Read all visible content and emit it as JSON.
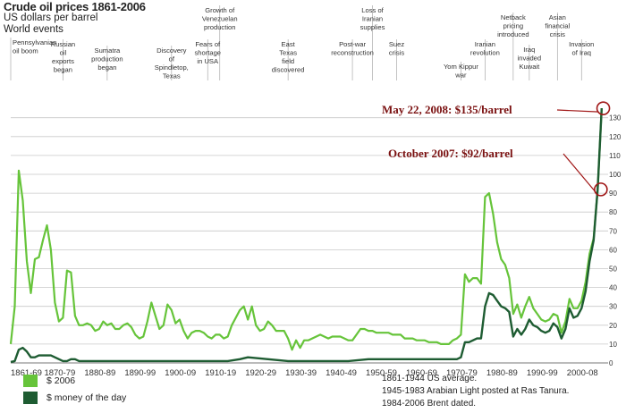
{
  "header": {
    "title": "Crude oil prices 1861-2006",
    "subtitle": "US dollars per barrel",
    "events_heading": "World events"
  },
  "legend": {
    "items": [
      {
        "label": "$ 2006",
        "color": "#66c43a"
      },
      {
        "label": "$ money of the day",
        "color": "#1e5c32"
      }
    ]
  },
  "notes": [
    "1861-1944 US average.",
    "1945-1983 Arabian Light posted at Ras Tanura.",
    "1984-2006 Brent dated."
  ],
  "annotations": [
    {
      "label": "May 22, 2008: $135/barrel",
      "year": 2008.4,
      "value": 135
    },
    {
      "label": "October 2007: $92/barrel",
      "year": 2007.8,
      "value": 92
    }
  ],
  "events": [
    {
      "label": "Pennsylvanian oil boom",
      "year": 1861
    },
    {
      "label": "Russian oil exports began",
      "year": 1874
    },
    {
      "label": "Sumatra production began",
      "year": 1885
    },
    {
      "label": "Discovery of Spindletop, Texas",
      "year": 1901
    },
    {
      "label": "Fears of shortage in USA",
      "year": 1910
    },
    {
      "label": "Growth of Venezuelan production",
      "year": 1913
    },
    {
      "label": "East Texas field discovered",
      "year": 1930
    },
    {
      "label": "Post-war reconstruction",
      "year": 1946
    },
    {
      "label": "Loss of Iranian supplies",
      "year": 1951
    },
    {
      "label": "Suez crisis",
      "year": 1957
    },
    {
      "label": "Yom Kippur war",
      "year": 1973
    },
    {
      "label": "Iranian revolution",
      "year": 1979
    },
    {
      "label": "Netback pricing introduced",
      "year": 1986
    },
    {
      "label": "Iraq invaded Kuwait",
      "year": 1990
    },
    {
      "label": "Asian financial crisis",
      "year": 1997
    },
    {
      "label": "Invasion of Iraq",
      "year": 2003
    }
  ],
  "chart_data": {
    "type": "line",
    "title": "Crude oil prices 1861-2006",
    "ylabel": "US dollars per barrel",
    "xlim": [
      1861,
      2008.5
    ],
    "ylim": [
      0,
      135
    ],
    "yticks": [
      0,
      10,
      20,
      30,
      40,
      50,
      60,
      70,
      80,
      90,
      100,
      110,
      120,
      130
    ],
    "y_axis_position": "right",
    "grid": "horizontal",
    "legend_position": "bottom-left",
    "categories": [
      "1861-69",
      "1870-79",
      "1880-89",
      "1890-99",
      "1900-09",
      "1910-19",
      "1920-29",
      "1930-39",
      "1940-49",
      "1950-59",
      "1960-69",
      "1970-79",
      "1980-89",
      "1990-99",
      "2000-08"
    ],
    "series": [
      {
        "name": "$ 2006",
        "color": "#66c43a",
        "x": [
          1861,
          1862,
          1863,
          1864,
          1865,
          1866,
          1867,
          1868,
          1869,
          1870,
          1871,
          1872,
          1873,
          1874,
          1875,
          1876,
          1877,
          1878,
          1879,
          1880,
          1881,
          1882,
          1883,
          1884,
          1885,
          1886,
          1887,
          1888,
          1889,
          1890,
          1891,
          1892,
          1893,
          1894,
          1895,
          1896,
          1897,
          1898,
          1899,
          1900,
          1901,
          1902,
          1903,
          1904,
          1905,
          1906,
          1907,
          1908,
          1909,
          1910,
          1911,
          1912,
          1913,
          1914,
          1915,
          1916,
          1917,
          1918,
          1919,
          1920,
          1921,
          1922,
          1923,
          1924,
          1925,
          1926,
          1927,
          1928,
          1929,
          1930,
          1931,
          1932,
          1933,
          1934,
          1935,
          1936,
          1937,
          1938,
          1939,
          1940,
          1941,
          1942,
          1943,
          1944,
          1945,
          1946,
          1947,
          1948,
          1949,
          1950,
          1951,
          1952,
          1953,
          1954,
          1955,
          1956,
          1957,
          1958,
          1959,
          1960,
          1961,
          1962,
          1963,
          1964,
          1965,
          1966,
          1967,
          1968,
          1969,
          1970,
          1971,
          1972,
          1973,
          1974,
          1975,
          1976,
          1977,
          1978,
          1979,
          1980,
          1981,
          1982,
          1983,
          1984,
          1985,
          1986,
          1987,
          1988,
          1989,
          1990,
          1991,
          1992,
          1993,
          1994,
          1995,
          1996,
          1997,
          1998,
          1999,
          2000,
          2001,
          2002,
          2003,
          2004,
          2005,
          2006,
          2007,
          2008
        ],
        "y": [
          10,
          30,
          102,
          86,
          54,
          37,
          55,
          56,
          65,
          73,
          60,
          32,
          22,
          24,
          49,
          48,
          25,
          20,
          20,
          21,
          20,
          17,
          18,
          22,
          20,
          21,
          18,
          18,
          20,
          21,
          19,
          15,
          13,
          14,
          22,
          32,
          25,
          18,
          20,
          31,
          28,
          21,
          23,
          17,
          13,
          16,
          17,
          17,
          16,
          14,
          13,
          15,
          15,
          13,
          14,
          20,
          24,
          28,
          30,
          23,
          30,
          20,
          17,
          18,
          22,
          20,
          17,
          17,
          17,
          13,
          7,
          12,
          8,
          12,
          12,
          13,
          14,
          15,
          14,
          13,
          14,
          14,
          14,
          13,
          12,
          12,
          15,
          18,
          18,
          17,
          17,
          16,
          16,
          16,
          16,
          15,
          15,
          15,
          13,
          13,
          13,
          12,
          12,
          12,
          11,
          11,
          11,
          10,
          10,
          10,
          12,
          13,
          15,
          47,
          43,
          45,
          45,
          42,
          88,
          90,
          79,
          64,
          55,
          52,
          45,
          26,
          31,
          24,
          30,
          35,
          29,
          26,
          23,
          22,
          23,
          26,
          25,
          16,
          22,
          34,
          29,
          29,
          33,
          43,
          58,
          66,
          92,
          135
        ]
      },
      {
        "name": "$ money of the day",
        "color": "#1e5c32",
        "x": [
          1861,
          1862,
          1863,
          1864,
          1865,
          1866,
          1867,
          1868,
          1869,
          1870,
          1871,
          1872,
          1873,
          1874,
          1875,
          1876,
          1877,
          1878,
          1879,
          1880,
          1885,
          1890,
          1895,
          1900,
          1905,
          1910,
          1915,
          1918,
          1920,
          1925,
          1930,
          1935,
          1940,
          1945,
          1950,
          1955,
          1960,
          1965,
          1970,
          1971,
          1972,
          1973,
          1974,
          1975,
          1976,
          1977,
          1978,
          1979,
          1980,
          1981,
          1982,
          1983,
          1984,
          1985,
          1986,
          1987,
          1988,
          1989,
          1990,
          1991,
          1992,
          1993,
          1994,
          1995,
          1996,
          1997,
          1998,
          1999,
          2000,
          2001,
          2002,
          2003,
          2004,
          2005,
          2006,
          2007,
          2008
        ],
        "y": [
          0.5,
          1,
          7,
          8,
          6,
          3,
          3,
          4,
          4,
          4,
          4,
          3,
          2,
          1,
          1,
          2,
          2,
          1,
          1,
          1,
          1,
          1,
          1,
          1,
          1,
          1,
          1,
          2,
          3,
          2,
          1,
          1,
          1,
          1,
          2,
          2,
          2,
          2,
          2,
          2,
          2,
          3,
          11,
          11,
          12,
          13,
          13,
          30,
          37,
          36,
          33,
          30,
          29,
          27,
          14,
          18,
          15,
          18,
          23,
          20,
          19,
          17,
          16,
          17,
          21,
          19,
          13,
          18,
          29,
          24,
          25,
          29,
          38,
          54,
          65,
          92,
          135
        ]
      }
    ]
  }
}
